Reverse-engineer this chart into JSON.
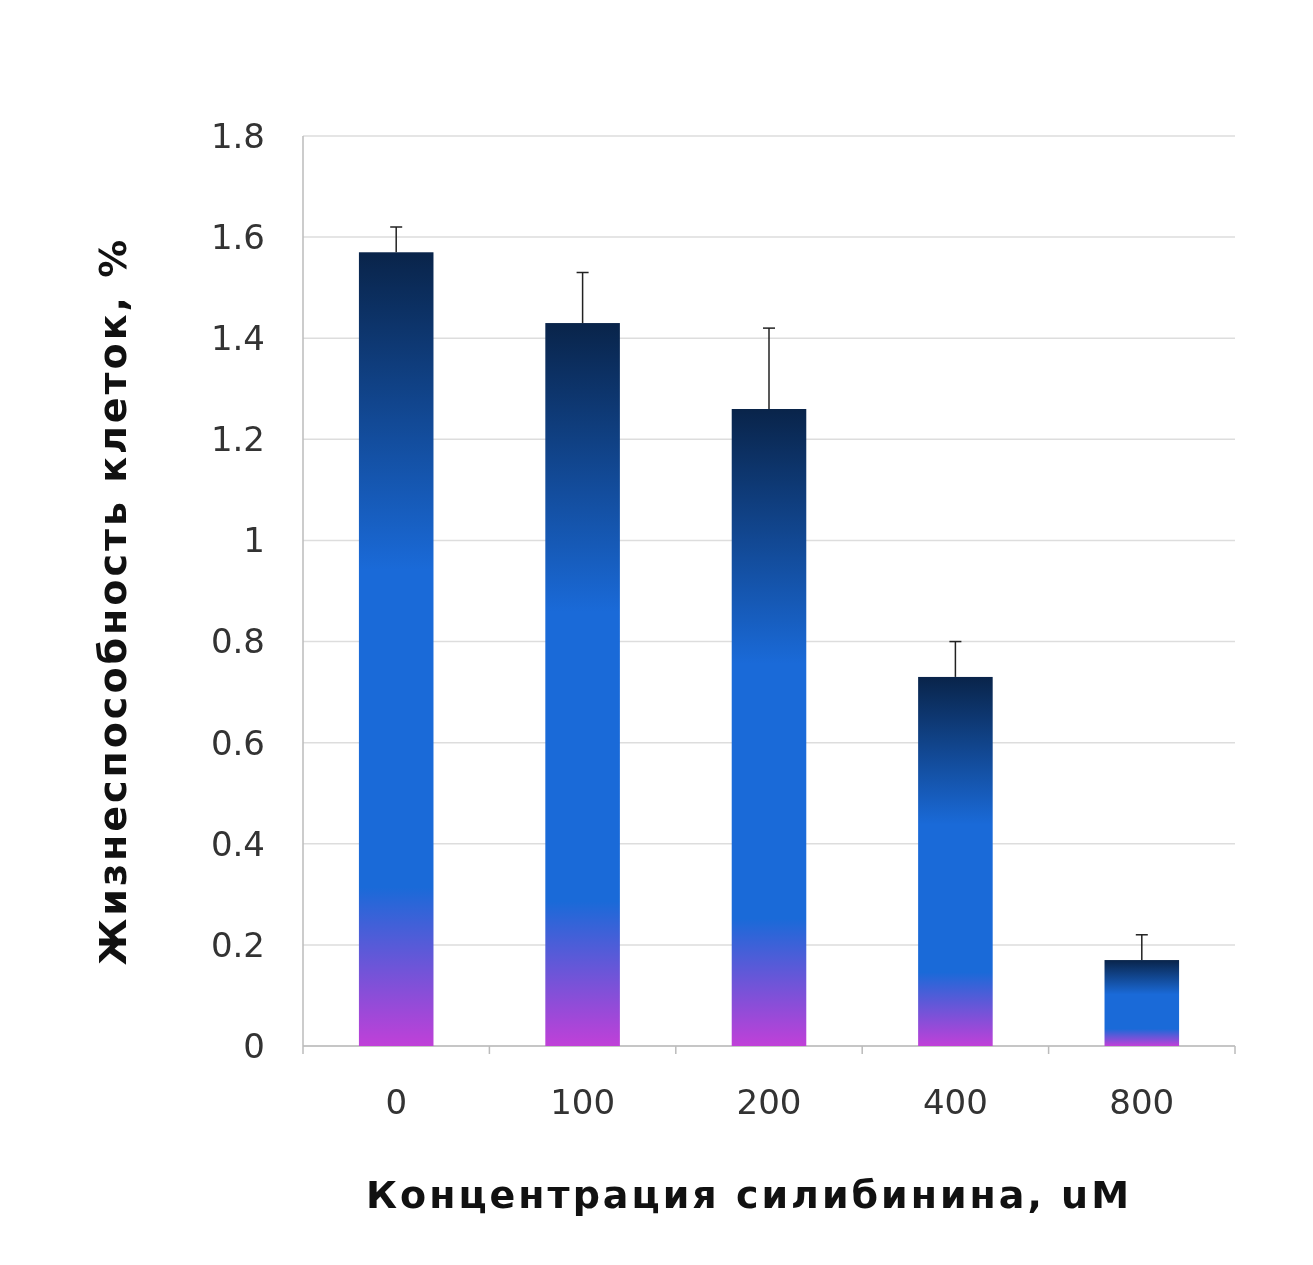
{
  "chart_data": {
    "type": "bar",
    "xlabel": "Концентрация силибинина, uM",
    "ylabel": "Жизнеспособность клеток, %",
    "categories": [
      "0",
      "100",
      "200",
      "400",
      "800"
    ],
    "values": [
      1.57,
      1.43,
      1.26,
      0.73,
      0.17
    ],
    "errors": [
      [
        1.57,
        1.62
      ],
      [
        1.43,
        1.53
      ],
      [
        1.26,
        1.42
      ],
      [
        0.73,
        0.8
      ],
      [
        0.17,
        0.22
      ]
    ],
    "color": "#1a6ad8",
    "ylim": [
      0,
      1.8
    ],
    "yticks": [
      {
        "value": 0,
        "label": "0"
      },
      {
        "value": 0.2,
        "label": "0.2"
      },
      {
        "value": 0.4,
        "label": "0.4"
      },
      {
        "value": 0.6,
        "label": "0.6"
      },
      {
        "value": 0.8,
        "label": "0.8"
      },
      {
        "value": 1,
        "label": "1"
      },
      {
        "value": 1.2,
        "label": "1.2"
      },
      {
        "value": 1.4,
        "label": "1.4"
      },
      {
        "value": 1.6,
        "label": "1.6"
      },
      {
        "value": 1.8,
        "label": "1.8"
      }
    ],
    "grid": "y"
  }
}
